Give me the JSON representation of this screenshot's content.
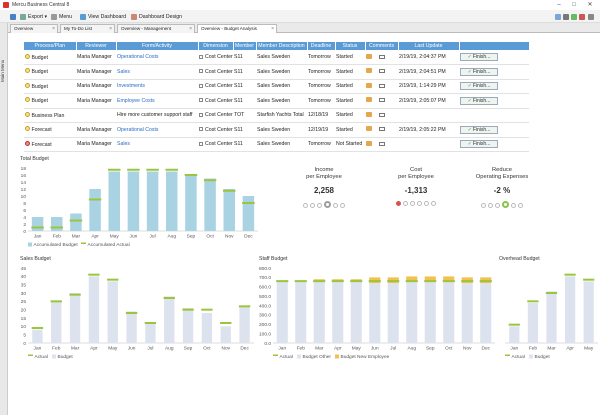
{
  "window": {
    "title": "Mercu Business Central 8"
  },
  "menu": {
    "export": "Export",
    "menu": "Menu",
    "view_dashboard": "View Dashboard",
    "dashboard_design": "Dashboard Design"
  },
  "sidebar": {
    "label": "Main Menu"
  },
  "tabs": [
    {
      "label": "Overview"
    },
    {
      "label": "My To-Do List"
    },
    {
      "label": "Overview - Management"
    },
    {
      "label": "Overview - Budget Analysis"
    }
  ],
  "table": {
    "columns": [
      "Process/Plan",
      "Reviewer",
      "Form/Activity",
      "Dimension",
      "Member",
      "Member Description",
      "Deadline",
      "Status",
      "Comments",
      "Last Update",
      ""
    ],
    "rows": [
      {
        "status_color": "yellow",
        "process": "Budget",
        "reviewer": "Maria Manager",
        "form": "Operational Costs",
        "dimension": "Cost Center",
        "member": "S11",
        "description": "Sales Sweden",
        "deadline": "Tomorrow",
        "status": "Started",
        "last_update": "2/19/19, 2:04:37 PM",
        "action": "Finish..."
      },
      {
        "status_color": "yellow",
        "process": "Budget",
        "reviewer": "Maria Manager",
        "form": "Sales",
        "dimension": "Cost Center",
        "member": "S11",
        "description": "Sales Sweden",
        "deadline": "Tomorrow",
        "status": "Started",
        "last_update": "2/19/19, 2:04:51 PM",
        "action": "Finish..."
      },
      {
        "status_color": "yellow",
        "process": "Budget",
        "reviewer": "Maria Manager",
        "form": "Investments",
        "dimension": "Cost Center",
        "member": "S11",
        "description": "Sales Sweden",
        "deadline": "Tomorrow",
        "status": "Started",
        "last_update": "2/19/19, 1:14:29 PM",
        "action": "Finish..."
      },
      {
        "status_color": "yellow",
        "process": "Budget",
        "reviewer": "Maria Manager",
        "form": "Employee Costs",
        "dimension": "Cost Center",
        "member": "S11",
        "description": "Sales Sweden",
        "deadline": "Tomorrow",
        "status": "Started",
        "last_update": "2/19/19, 2:05:07 PM",
        "action": "Finish..."
      },
      {
        "status_color": "yellow",
        "process": "Business Plan",
        "reviewer": "",
        "form": "Hire more customer support staff",
        "dimension": "Cost Center",
        "member": "TOT",
        "description": "Starfish Yachts Total",
        "deadline": "12/18/19",
        "status": "Started",
        "last_update": "",
        "action": ""
      },
      {
        "status_color": "yellow",
        "process": "Forecast",
        "reviewer": "Maria Manager",
        "form": "Operational Costs",
        "dimension": "Cost Center",
        "member": "S11",
        "description": "Sales Sweden",
        "deadline": "12/19/19",
        "status": "Started",
        "last_update": "2/19/19, 2:05:22 PM",
        "action": "Finish..."
      },
      {
        "status_color": "red",
        "process": "Forecast",
        "reviewer": "Maria Manager",
        "form": "Sales",
        "dimension": "Cost Center",
        "member": "S11",
        "description": "Sales Sweden",
        "deadline": "Tomorrow",
        "status": "Not Started",
        "last_update": "",
        "action": "Finish..."
      }
    ]
  },
  "kpis": [
    {
      "title": "Income",
      "subtitle": "per Employee",
      "value": "2,258",
      "status_color": "#9e9e9e"
    },
    {
      "title": "Cost",
      "subtitle": "per Employee",
      "value": "-1,313",
      "status_color": "#d9534f"
    },
    {
      "title": "Reduce",
      "subtitle": "Operating Expenses",
      "value": "-2 %",
      "status_color": "#8bc34a"
    }
  ],
  "colors": {
    "header": "#5a9bd5",
    "bar": "#a9d3e3",
    "actual": "#9bc53d",
    "budget": "#dde3ee",
    "other": "#f2c14e"
  },
  "chart_data": [
    {
      "type": "bar",
      "title": "Total Budget",
      "categories": [
        "Jan",
        "Feb",
        "Mar",
        "Apr",
        "May",
        "Jun",
        "Jul",
        "Aug",
        "Sep",
        "Oct",
        "Nov",
        "Dec"
      ],
      "series": [
        {
          "name": "Accumulated Budget",
          "values": [
            4,
            4,
            5,
            12,
            17,
            17,
            17,
            17,
            16,
            15,
            12,
            10
          ]
        },
        {
          "name": "Accumulated Actual",
          "values": [
            1,
            1,
            3,
            9,
            17.5,
            17.5,
            17.5,
            17.5,
            16,
            14.5,
            11.5,
            8
          ]
        }
      ],
      "yticks": [
        "0",
        "2",
        "4",
        "6",
        "8",
        "10",
        "12",
        "14",
        "16",
        "18"
      ],
      "ylim": [
        0,
        18
      ]
    },
    {
      "type": "bar",
      "title": "Sales Budget",
      "categories": [
        "Jan",
        "Feb",
        "Mar",
        "Apr",
        "May",
        "Jun",
        "Jul",
        "Aug",
        "Sep",
        "Oct",
        "Nov",
        "Dec"
      ],
      "series": [
        {
          "name": "Actual",
          "values": [
            9,
            25,
            29,
            41,
            38,
            18,
            12,
            27,
            20,
            20,
            12,
            22
          ]
        },
        {
          "name": "Budget",
          "values": [
            8,
            25,
            30,
            40,
            37,
            19,
            12,
            28,
            21,
            18,
            10,
            22
          ]
        }
      ],
      "yticks": [
        "0",
        "5",
        "10",
        "15",
        "20",
        "25",
        "30",
        "35",
        "40",
        "45"
      ],
      "ylim": [
        0,
        45
      ]
    },
    {
      "type": "bar",
      "title": "Staff Budget",
      "categories": [
        "Jan",
        "Feb",
        "Mar",
        "Apr",
        "May",
        "Jun",
        "Jul",
        "Aug",
        "Sep",
        "Oct",
        "Nov",
        "Dec"
      ],
      "series": [
        {
          "name": "Actual",
          "values": [
            660,
            660,
            660,
            660,
            660,
            660,
            660,
            660,
            660,
            660,
            660,
            660
          ]
        },
        {
          "name": "Budget Other",
          "values": [
            660,
            660,
            650,
            660,
            660,
            640,
            640,
            650,
            650,
            650,
            640,
            640
          ]
        },
        {
          "name": "Budget New Employee",
          "values": [
            0,
            0,
            30,
            20,
            20,
            60,
            60,
            60,
            60,
            60,
            60,
            60
          ]
        }
      ],
      "yticks": [
        "0.0",
        "100.0",
        "200.0",
        "300.0",
        "400.0",
        "500.0",
        "600.0",
        "700.0",
        "800.0"
      ],
      "ylim": [
        0,
        800
      ]
    },
    {
      "type": "bar",
      "title": "Overhead Budget",
      "categories": [
        "Jan",
        "Feb",
        "Mar",
        "Apr",
        "May"
      ],
      "series": [
        {
          "name": "Actual",
          "values": [
            11,
            25,
            30,
            41,
            38
          ]
        },
        {
          "name": "Budget",
          "values": [
            10,
            24,
            31,
            40,
            37
          ]
        }
      ],
      "ylim": [
        0,
        45
      ]
    }
  ]
}
